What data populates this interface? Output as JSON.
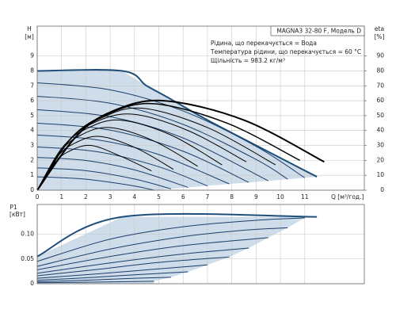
{
  "chart_data": [
    {
      "type": "line",
      "title": "MAGNA3 32-80 F, Модель D",
      "annotations": [
        "Рідина, що перекачується = Вода",
        "Температура рідини, що перекачується = 60 °C",
        "Щільність = 983.2 кг/м³"
      ],
      "y_label": "H",
      "y_unit": "[м]",
      "y2_label": "eta",
      "y2_unit": "[%]",
      "x_label": "Q [м³/год.]",
      "xlim": [
        0,
        13.45
      ],
      "xticks": [
        0,
        1,
        2,
        3,
        4,
        5,
        6,
        7,
        8,
        9,
        10,
        11
      ],
      "ylim": [
        0,
        11
      ],
      "yticks": [
        0,
        1,
        2,
        3,
        4,
        5,
        6,
        7,
        8,
        9
      ],
      "y2lim": [
        0,
        110
      ],
      "y2ticks": [
        0,
        10,
        20,
        30,
        40,
        50,
        60,
        70,
        80,
        90
      ],
      "grid": true,
      "area": {
        "color": "#cfdce9",
        "x": [
          0,
          3.5,
          4.5,
          5.5,
          7,
          9,
          11.5,
          11,
          10.3,
          9.5,
          8.7,
          7.9,
          7,
          6.2,
          5.5,
          4.8
        ],
        "values": [
          8,
          8,
          7,
          6.1,
          4.7,
          3,
          0.9,
          0.83,
          0.74,
          0.63,
          0.52,
          0.42,
          0.29,
          0.19,
          0.09,
          0
        ]
      },
      "series": [
        {
          "color": "#1f4e79",
          "linewidth": 2,
          "x": [
            0,
            3.5,
            4.5,
            5.5,
            7,
            9,
            11.5
          ],
          "values": [
            8,
            8,
            7,
            6.1,
            4.7,
            3,
            0.9
          ]
        },
        {
          "color": "#1b3f6b",
          "x": [
            0,
            3,
            6,
            9,
            11
          ],
          "values": [
            7.2,
            6.73,
            5.31,
            2.94,
            0.83
          ]
        },
        {
          "color": "#1b3f6b",
          "x": [
            0,
            3,
            6,
            9,
            10.3
          ],
          "values": [
            6.3,
            5.83,
            4.41,
            2.06,
            0.74
          ]
        },
        {
          "color": "#1b3f6b",
          "x": [
            0,
            3,
            6,
            9.5
          ],
          "values": [
            5.4,
            4.92,
            3.5,
            0.63
          ]
        },
        {
          "color": "#1b3f6b",
          "x": [
            0,
            3,
            6,
            8.7
          ],
          "values": [
            4.5,
            4.03,
            2.61,
            0.52
          ]
        },
        {
          "color": "#1b3f6b",
          "x": [
            0,
            2.5,
            5,
            7.9
          ],
          "values": [
            3.7,
            3.37,
            2.39,
            0.42
          ]
        },
        {
          "color": "#1b3f6b",
          "x": [
            0,
            2.5,
            5,
            7
          ],
          "values": [
            2.9,
            2.57,
            1.57,
            0.29
          ]
        },
        {
          "color": "#1b3f6b",
          "x": [
            0,
            2,
            4,
            6.2
          ],
          "values": [
            2.2,
            1.99,
            1.36,
            0.19
          ]
        },
        {
          "color": "#1b3f6b",
          "x": [
            0,
            2,
            4,
            5.5
          ],
          "values": [
            1.5,
            1.31,
            0.75,
            0.09
          ]
        },
        {
          "color": "#1b3f6b",
          "x": [
            0,
            2,
            4,
            4.8
          ],
          "values": [
            0.9,
            0.74,
            0.28,
            0
          ]
        },
        {
          "color": "#000000",
          "axis": "y2",
          "linewidth": 2,
          "x": [
            0,
            1.6,
            3.1,
            5.2,
            8.5,
            11.8
          ],
          "values": [
            0,
            36,
            53,
            60,
            47,
            19
          ]
        },
        {
          "color": "#000000",
          "axis": "y2",
          "linewidth": 1.5,
          "x": [
            0,
            1.4,
            2.9,
            4.8,
            7.8,
            10.8
          ],
          "values": [
            0,
            35,
            51,
            58,
            45,
            20
          ]
        },
        {
          "color": "#000000",
          "axis": "y2",
          "x": [
            0,
            1.3,
            2.6,
            4.3,
            7.0,
            9.8
          ],
          "values": [
            0,
            33,
            48,
            55,
            42,
            17
          ]
        },
        {
          "color": "#000000",
          "axis": "y2",
          "x": [
            0,
            1.2,
            2.3,
            3.9,
            6.2,
            8.6
          ],
          "values": [
            0,
            31,
            45,
            51,
            40,
            19
          ]
        },
        {
          "color": "#000000",
          "axis": "y2",
          "x": [
            0,
            1.0,
            2.0,
            3.4,
            5.5,
            7.6
          ],
          "values": [
            0,
            28,
            41,
            47,
            37,
            17
          ]
        },
        {
          "color": "#000000",
          "axis": "y2",
          "x": [
            0,
            0.9,
            1.8,
            3.0,
            4.8,
            6.6
          ],
          "values": [
            0,
            25,
            37,
            42,
            33,
            16
          ]
        },
        {
          "color": "#000000",
          "axis": "y2",
          "x": [
            0,
            0.8,
            1.6,
            2.6,
            4.1,
            5.6
          ],
          "values": [
            0,
            22,
            32,
            36,
            28,
            14
          ]
        },
        {
          "color": "#000000",
          "axis": "y2",
          "x": [
            0,
            0.7,
            1.3,
            2.2,
            3.4,
            4.7
          ],
          "values": [
            0,
            18,
            26,
            30,
            23,
            13
          ]
        }
      ]
    },
    {
      "type": "line",
      "y_label": "P1",
      "y_unit": "[кВт]",
      "ylim": [
        0,
        0.16
      ],
      "yticks": [
        0,
        0.05,
        {
          "value": 0.1,
          "label": "0.10"
        }
      ],
      "grid": true,
      "area": {
        "color": "#cfdce9",
        "x": [
          0,
          3.5,
          11.5,
          11,
          10.3,
          9.5,
          8.7,
          7.9,
          7,
          6.2,
          5.5,
          4.8
        ],
        "values": [
          0.055,
          0.135,
          0.135,
          0.133,
          0.113,
          0.093,
          0.072,
          0.054,
          0.038,
          0.024,
          0.013,
          0.005
        ]
      },
      "series": [
        {
          "color": "#1f4e79",
          "linewidth": 2,
          "x": [
            0,
            3.5,
            11.5
          ],
          "values": [
            0.055,
            0.135,
            0.135
          ]
        },
        {
          "color": "#1b3f6b",
          "x": [
            0,
            3,
            6,
            9,
            11
          ],
          "values": [
            0.045,
            0.09,
            0.115,
            0.128,
            0.133
          ]
        },
        {
          "color": "#1b3f6b",
          "x": [
            0,
            3,
            6,
            8.5,
            10.3
          ],
          "values": [
            0.035,
            0.07,
            0.095,
            0.108,
            0.113
          ]
        },
        {
          "color": "#1b3f6b",
          "x": [
            0,
            3,
            6,
            9.5
          ],
          "values": [
            0.028,
            0.055,
            0.077,
            0.093
          ]
        },
        {
          "color": "#1b3f6b",
          "x": [
            0,
            3,
            6,
            8.7
          ],
          "values": [
            0.021,
            0.042,
            0.06,
            0.072
          ]
        },
        {
          "color": "#1b3f6b",
          "x": [
            0,
            2.5,
            5,
            7.9
          ],
          "values": [
            0.016,
            0.029,
            0.043,
            0.054
          ]
        },
        {
          "color": "#1b3f6b",
          "x": [
            0,
            2.5,
            5,
            7
          ],
          "values": [
            0.011,
            0.02,
            0.03,
            0.038
          ]
        },
        {
          "color": "#1b3f6b",
          "x": [
            0,
            2,
            4,
            6.2
          ],
          "values": [
            0.007,
            0.012,
            0.018,
            0.024
          ]
        },
        {
          "color": "#1b3f6b",
          "x": [
            0,
            2,
            4,
            5.5
          ],
          "values": [
            0.004,
            0.007,
            0.011,
            0.013
          ]
        },
        {
          "color": "#1b3f6b",
          "x": [
            0,
            2,
            4.8
          ],
          "values": [
            0.002,
            0.003,
            0.005
          ]
        }
      ]
    }
  ]
}
